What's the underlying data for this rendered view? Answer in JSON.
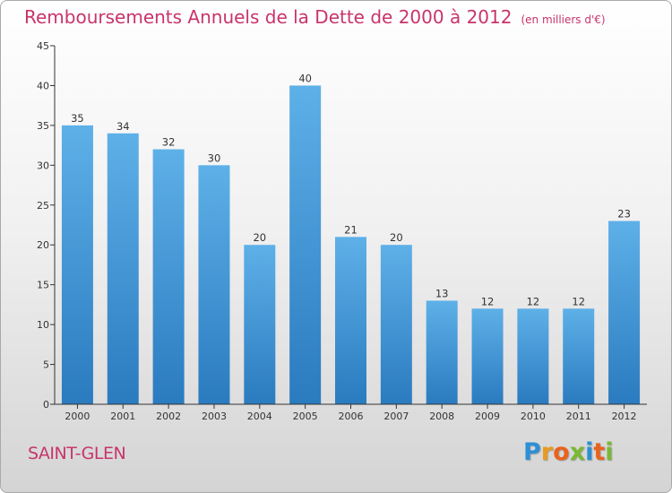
{
  "title": "Remboursements Annuels de la Dette de 2000 à 2012",
  "unit": "(en milliers d'€)",
  "location": "SAINT-GLEN",
  "logo": {
    "text": "Proxiti",
    "letter_colors": [
      "#2d8fd5",
      "#e89b1f",
      "#e8631f",
      "#7ab833",
      "#2d8fd5",
      "#e8631f",
      "#7ab833"
    ]
  },
  "colors": {
    "title": "#c8346b",
    "bar_top": "#5eb0e8",
    "bar_bottom": "#2a7bbf",
    "axis": "#333333"
  },
  "chart_data": {
    "type": "bar",
    "title": "Remboursements Annuels de la Dette de 2000 à 2012",
    "xlabel": "",
    "ylabel": "",
    "categories": [
      "2000",
      "2001",
      "2002",
      "2003",
      "2004",
      "2005",
      "2006",
      "2007",
      "2008",
      "2009",
      "2010",
      "2011",
      "2012"
    ],
    "values": [
      35,
      34,
      32,
      30,
      20,
      40,
      21,
      20,
      13,
      12,
      12,
      12,
      23
    ],
    "ylim": [
      0,
      45
    ],
    "yticks": [
      0,
      5,
      10,
      15,
      20,
      25,
      30,
      35,
      40,
      45
    ],
    "grid": false,
    "data_labels": true
  }
}
